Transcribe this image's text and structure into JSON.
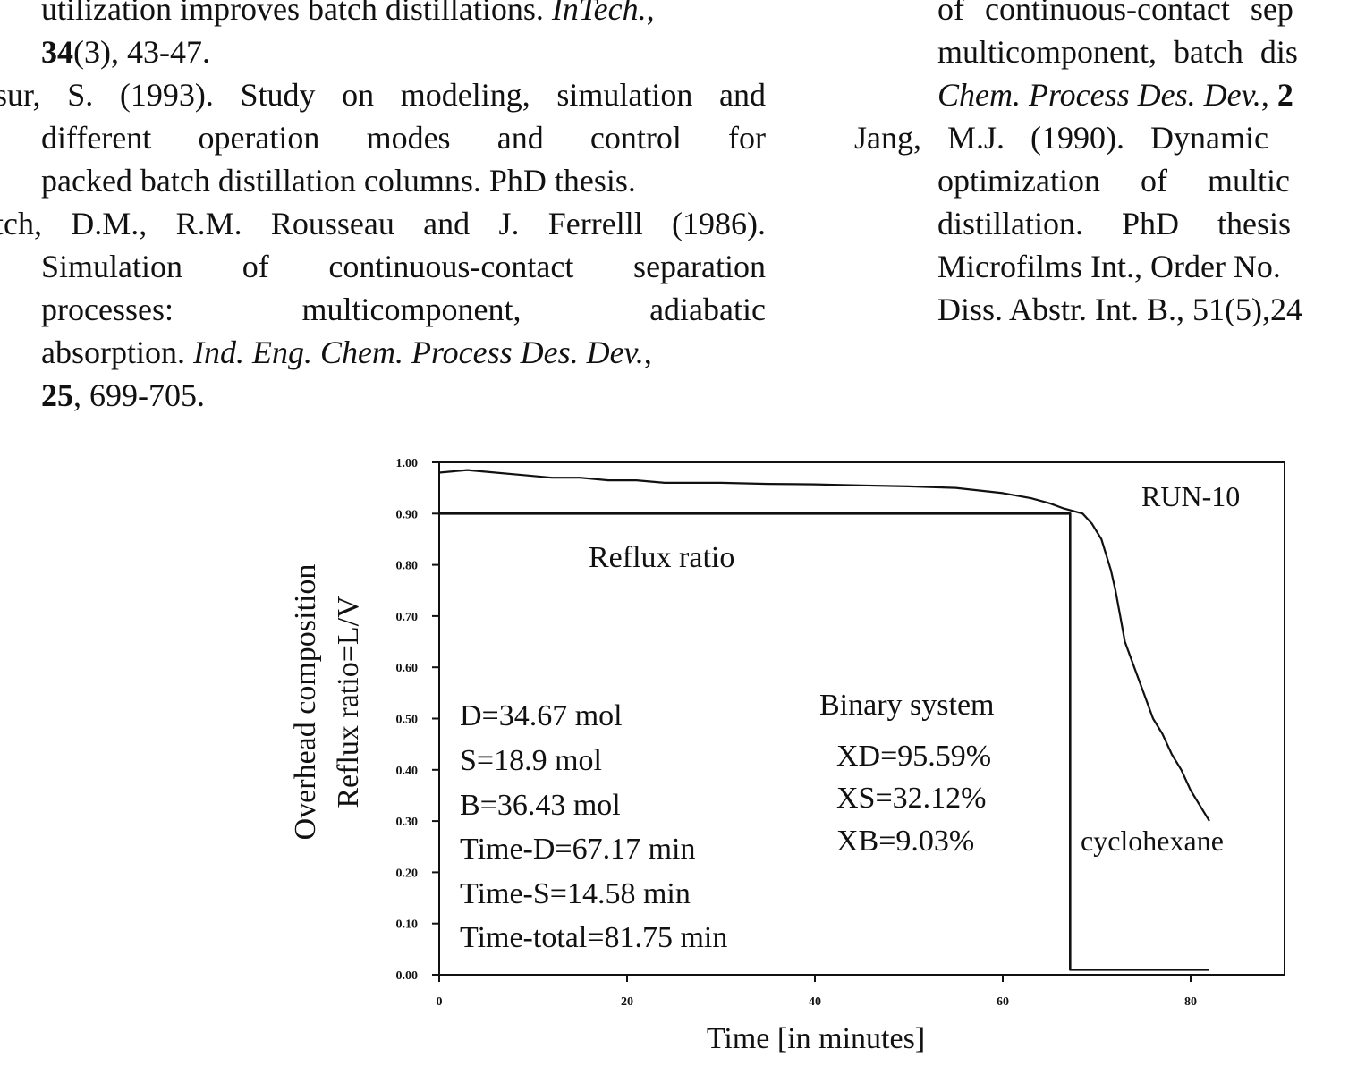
{
  "left_column": {
    "ref1": {
      "line1": "utilization improves batch distillations.",
      "line1_italic": "InTech.",
      "line1_tail": ",",
      "line2_bold": "34",
      "line2_rest": "(3), 43-47."
    },
    "ref2": {
      "line1": "sur, S. (1993). Study on modeling, simulation and",
      "line2": "different operation modes and control for",
      "line3": "packed batch distillation columns. PhD thesis."
    },
    "ref3": {
      "line1": "tch, D.M., R.M. Rousseau and J. Ferrelll (1986).",
      "line2": "Simulation of continuous-contact separation",
      "line3": "processes: multicomponent, adiabatic",
      "line4_plain": "absorption.",
      "line4_italic": "Ind. Eng. Chem. Process Des. Dev.",
      "line4_tail": ",",
      "line5_bold": "25",
      "line5_rest": ", 699-705."
    }
  },
  "right_column": {
    "ref1": {
      "line1": "of continuous-contact sep",
      "line2": "multicomponent, batch dis",
      "line3_italic": "Chem. Process Des. Dev.",
      "line3_tail": ", ",
      "line3_bold": "2"
    },
    "ref2": {
      "line1": "Jang, M.J. (1990). Dynamic",
      "line2": "optimization of multic",
      "line3": "distillation. PhD thesis",
      "line4": "Microfilms Int., Order No.",
      "line5": "Diss. Abstr. Int. B., 51(5),24"
    }
  },
  "chart_data": {
    "type": "line",
    "title": "RUN-10",
    "xlabel": "Time [in minutes]",
    "ylabel_line1": "Overhead composition",
    "ylabel_line2": "Reflux ratio=L/V",
    "xlim": [
      0,
      90
    ],
    "ylim": [
      0,
      1
    ],
    "x_ticks": [
      0,
      20,
      40,
      60,
      80
    ],
    "x_tick_labels": [
      "0",
      "20",
      "40",
      "60",
      "80"
    ],
    "y_ticks": [
      0,
      0.1,
      0.2,
      0.3,
      0.4,
      0.5,
      0.6,
      0.7,
      0.8,
      0.9,
      1.0
    ],
    "y_tick_labels": [
      "0.00",
      "0.10",
      "0.20",
      "0.30",
      "0.40",
      "0.50",
      "0.60",
      "0.70",
      "0.80",
      "0.90",
      "1.00"
    ],
    "series": [
      {
        "name": "cyclohexane",
        "x": [
          0,
          3,
          6,
          9,
          12,
          15,
          18,
          21,
          24,
          27,
          30,
          35,
          40,
          45,
          50,
          55,
          60,
          63,
          65,
          66.5,
          67.5,
          68.5,
          69.5,
          70.5,
          71,
          71.5,
          72,
          72.5,
          73,
          74,
          75,
          76,
          77,
          78,
          79,
          80,
          81,
          82
        ],
        "y": [
          0.98,
          0.985,
          0.98,
          0.975,
          0.97,
          0.97,
          0.965,
          0.965,
          0.96,
          0.96,
          0.96,
          0.958,
          0.957,
          0.955,
          0.953,
          0.95,
          0.94,
          0.93,
          0.92,
          0.91,
          0.905,
          0.9,
          0.88,
          0.85,
          0.82,
          0.79,
          0.75,
          0.7,
          0.65,
          0.6,
          0.55,
          0.5,
          0.47,
          0.43,
          0.4,
          0.36,
          0.33,
          0.3
        ]
      },
      {
        "name": "Reflux ratio",
        "x": [
          0,
          67.17,
          67.17,
          67.17,
          82
        ],
        "y": [
          0.9,
          0.9,
          0.9,
          0.01,
          0.01
        ]
      }
    ],
    "annotations": {
      "reflux_label": "Reflux ratio",
      "stats": [
        "D=34.67 mol",
        "S=18.9 mol",
        "B=36.43 mol",
        "Time-D=67.17 min",
        "Time-S=14.58 min",
        "Time-total=81.75 min"
      ],
      "binary_title": "Binary system",
      "binary_values": [
        "XD=95.59%",
        "XS=32.12%",
        "XB=9.03%"
      ],
      "component_label": "cyclohexane"
    },
    "grid": false,
    "legend": "none"
  }
}
